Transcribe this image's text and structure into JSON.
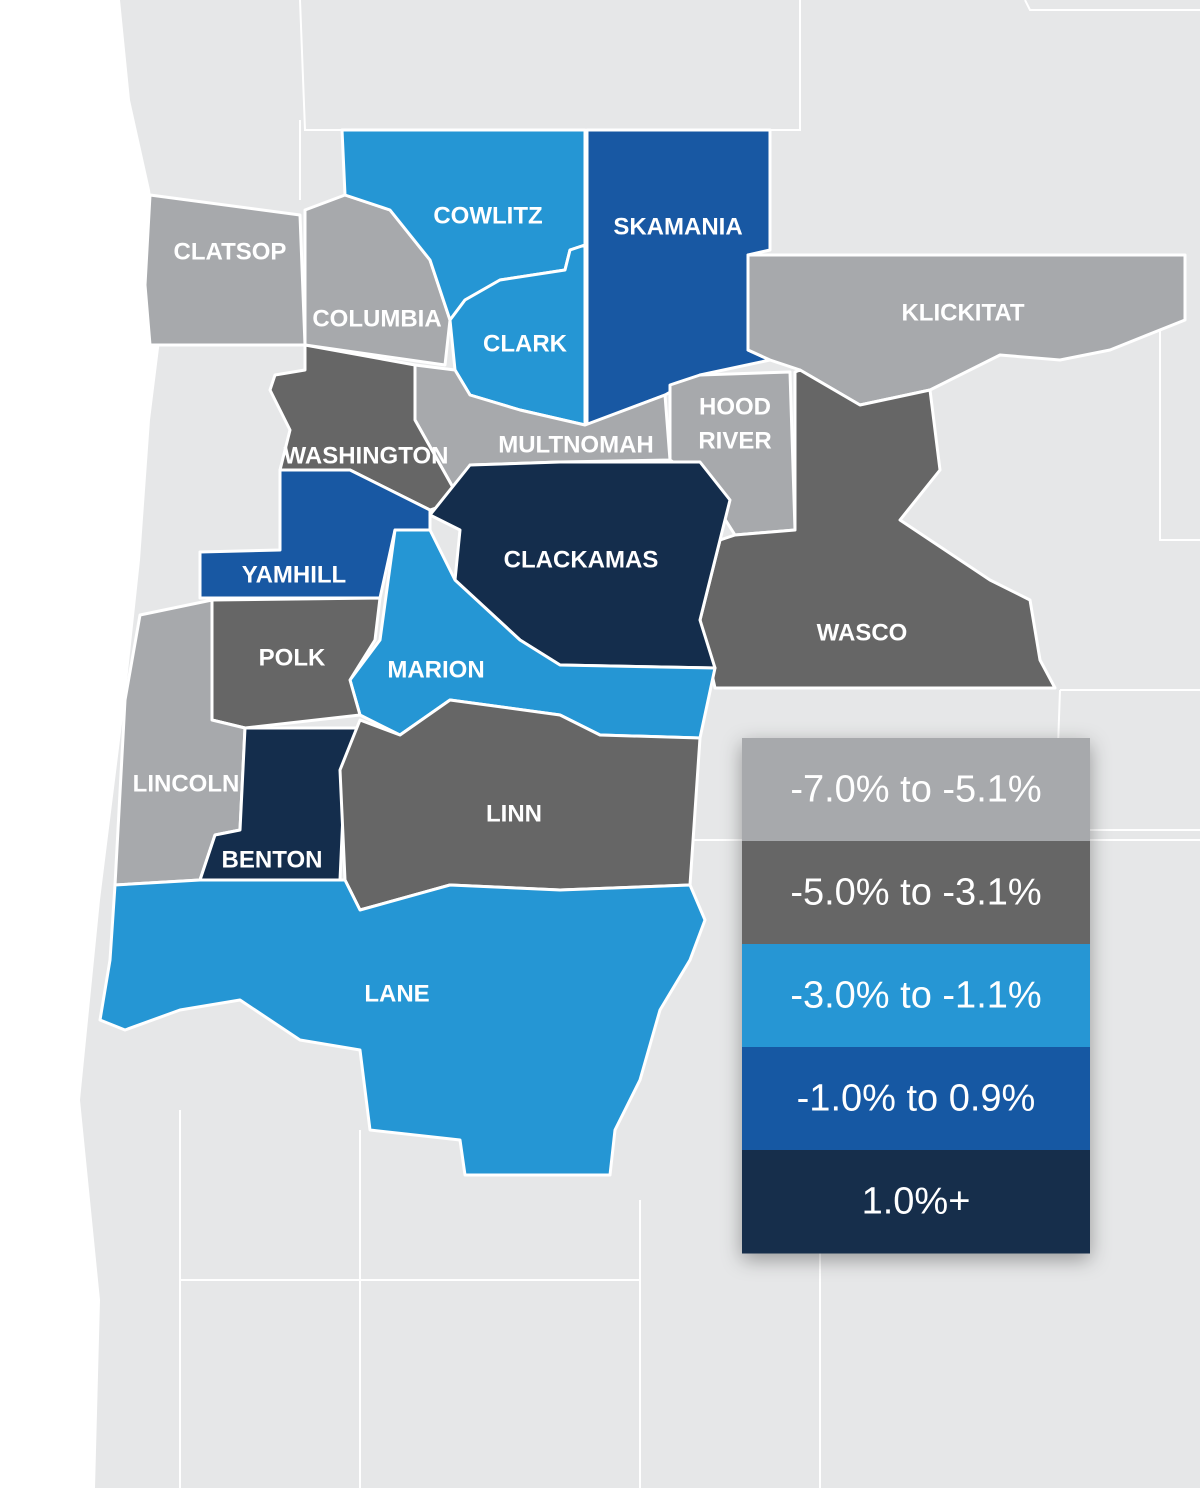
{
  "counties": [
    {
      "name": "CLATSOP",
      "color": "#a7a9ac"
    },
    {
      "name": "COLUMBIA",
      "color": "#a7a9ac"
    },
    {
      "name": "COWLITZ",
      "color": "#2596d4"
    },
    {
      "name": "CLARK",
      "color": "#2596d4"
    },
    {
      "name": "SKAMANIA",
      "color": "#1858a3"
    },
    {
      "name": "KLICKITAT",
      "color": "#a7a9ac"
    },
    {
      "name": [
        "HOOD",
        "RIVER"
      ],
      "color": "#a7a9ac"
    },
    {
      "name": "WASCO",
      "color": "#666666"
    },
    {
      "name": "MULTNOMAH",
      "color": "#a7a9ac"
    },
    {
      "name": "WASHINGTON",
      "color": "#666666"
    },
    {
      "name": "YAMHILL",
      "color": "#1858a3"
    },
    {
      "name": "CLACKAMAS",
      "color": "#142d4c"
    },
    {
      "name": "MARION",
      "color": "#2596d4"
    },
    {
      "name": "POLK",
      "color": "#666666"
    },
    {
      "name": "LINCOLN",
      "color": "#a7a9ac"
    },
    {
      "name": "BENTON",
      "color": "#142d4c"
    },
    {
      "name": "LINN",
      "color": "#666666"
    },
    {
      "name": "LANE",
      "color": "#2596d4"
    }
  ],
  "legend": [
    {
      "label": "-7.0% to -5.1%",
      "color": "#a7a9ac"
    },
    {
      "label": "-5.0% to -3.1%",
      "color": "#666666"
    },
    {
      "label": "-3.0% to -1.1%",
      "color": "#2596d4"
    },
    {
      "label": "-1.0% to 0.9%",
      "color": "#1858a3"
    },
    {
      "label": "1.0%+",
      "color": "#142d4c"
    }
  ]
}
